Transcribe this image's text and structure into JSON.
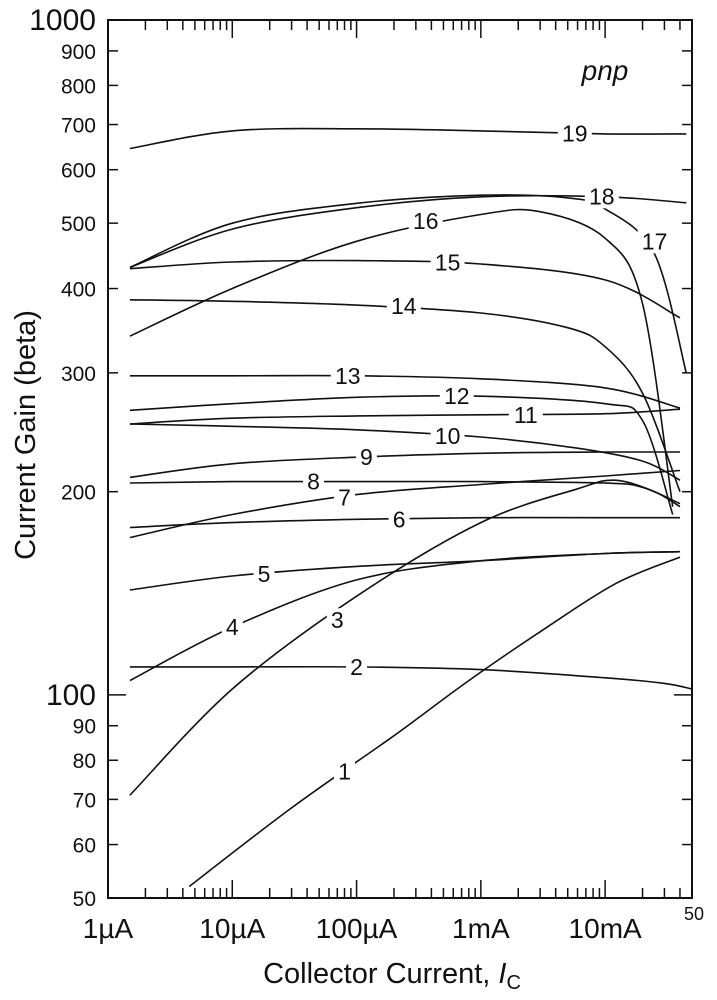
{
  "chart_data": {
    "type": "line",
    "title": "",
    "panel_label": "pnp",
    "xlabel": "Collector Current, ",
    "xlabel_var": "I",
    "xlabel_sub": "C",
    "ylabel": "Current Gain (beta)",
    "x_scale": "log",
    "y_scale": "log",
    "xlim": [
      1e-06,
      0.05
    ],
    "ylim": [
      50,
      1000
    ],
    "grid": false,
    "legend": "none",
    "x_ticks": [
      {
        "value": 1e-06,
        "label": "1µA"
      },
      {
        "value": 1e-05,
        "label": "10µA"
      },
      {
        "value": 0.0001,
        "label": "100µA"
      },
      {
        "value": 0.001,
        "label": "1mA"
      },
      {
        "value": 0.01,
        "label": "10mA"
      },
      {
        "value": 0.05,
        "label": "50"
      }
    ],
    "y_ticks": [
      {
        "value": 50,
        "label": "50"
      },
      {
        "value": 60,
        "label": "60"
      },
      {
        "value": 70,
        "label": "70"
      },
      {
        "value": 80,
        "label": "80"
      },
      {
        "value": 90,
        "label": "90"
      },
      {
        "value": 100,
        "label": "100"
      },
      {
        "value": 200,
        "label": "200"
      },
      {
        "value": 300,
        "label": "300"
      },
      {
        "value": 400,
        "label": "400"
      },
      {
        "value": 500,
        "label": "500"
      },
      {
        "value": 600,
        "label": "600"
      },
      {
        "value": 700,
        "label": "700"
      },
      {
        "value": 800,
        "label": "800"
      },
      {
        "value": 900,
        "label": "900"
      },
      {
        "value": 1000,
        "label": "1000"
      }
    ],
    "series": [
      {
        "name": "1",
        "points": [
          [
            4.5e-06,
            52
          ],
          [
            3e-05,
            68
          ],
          [
            0.0002,
            87
          ],
          [
            0.0008,
            105
          ],
          [
            0.003,
            124
          ],
          [
            0.012,
            146
          ],
          [
            0.04,
            160
          ]
        ],
        "label_at": [
          8e-05,
          77
        ]
      },
      {
        "name": "2",
        "points": [
          [
            1.5e-06,
            110
          ],
          [
            1e-05,
            110
          ],
          [
            0.0001,
            110
          ],
          [
            0.001,
            109
          ],
          [
            0.01,
            106
          ],
          [
            0.03,
            104
          ],
          [
            0.05,
            102
          ]
        ],
        "label_at": [
          0.0001,
          110
        ]
      },
      {
        "name": "3",
        "points": [
          [
            1.5e-06,
            71
          ],
          [
            1e-05,
            102
          ],
          [
            0.0001,
            140
          ],
          [
            0.001,
            180
          ],
          [
            0.006,
            202
          ],
          [
            0.012,
            208
          ],
          [
            0.025,
            200
          ],
          [
            0.04,
            190
          ]
        ],
        "label_at": [
          7e-05,
          129
        ]
      },
      {
        "name": "4",
        "points": [
          [
            1.5e-06,
            105
          ],
          [
            1e-05,
            126
          ],
          [
            0.0001,
            148
          ],
          [
            0.001,
            158
          ],
          [
            0.01,
            162
          ],
          [
            0.04,
            163
          ]
        ],
        "label_at": [
          1e-05,
          126
        ]
      },
      {
        "name": "5",
        "points": [
          [
            1.5e-06,
            143
          ],
          [
            1e-05,
            150
          ],
          [
            0.0001,
            155
          ],
          [
            0.001,
            158
          ],
          [
            0.01,
            162
          ],
          [
            0.04,
            163
          ]
        ],
        "label_at": [
          1.8e-05,
          151
        ]
      },
      {
        "name": "6",
        "points": [
          [
            1.5e-06,
            177
          ],
          [
            1e-05,
            180
          ],
          [
            0.0001,
            182
          ],
          [
            0.001,
            183
          ],
          [
            0.01,
            183
          ],
          [
            0.04,
            183
          ]
        ],
        "label_at": [
          0.00022,
          182
        ]
      },
      {
        "name": "7",
        "points": [
          [
            1.5e-06,
            171
          ],
          [
            1e-05,
            185
          ],
          [
            0.0001,
            198
          ],
          [
            0.001,
            205
          ],
          [
            0.01,
            211
          ],
          [
            0.04,
            215
          ]
        ],
        "label_at": [
          8e-05,
          196
        ]
      },
      {
        "name": "8",
        "points": [
          [
            1.5e-06,
            206
          ],
          [
            1e-05,
            207
          ],
          [
            0.0001,
            207
          ],
          [
            0.001,
            207
          ],
          [
            0.01,
            206
          ],
          [
            0.02,
            203
          ],
          [
            0.04,
            192
          ]
        ],
        "label_at": [
          4.5e-05,
          207
        ]
      },
      {
        "name": "9",
        "points": [
          [
            1.5e-06,
            210
          ],
          [
            1e-05,
            220
          ],
          [
            0.0001,
            225
          ],
          [
            0.001,
            228
          ],
          [
            0.01,
            229
          ],
          [
            0.04,
            229
          ]
        ],
        "label_at": [
          0.00012,
          225
        ]
      },
      {
        "name": "10",
        "points": [
          [
            1.5e-06,
            252
          ],
          [
            1e-05,
            250
          ],
          [
            0.0001,
            247
          ],
          [
            0.001,
            241
          ],
          [
            0.006,
            232
          ],
          [
            0.02,
            222
          ],
          [
            0.04,
            208
          ]
        ],
        "label_at": [
          0.00054,
          242
        ]
      },
      {
        "name": "11",
        "points": [
          [
            1.5e-06,
            252
          ],
          [
            1e-05,
            257
          ],
          [
            0.0001,
            259
          ],
          [
            0.001,
            260
          ],
          [
            0.01,
            261
          ],
          [
            0.04,
            265
          ]
        ],
        "label_at": [
          0.0023,
          260
        ]
      },
      {
        "name": "12",
        "points": [
          [
            1.5e-06,
            264
          ],
          [
            1e-05,
            270
          ],
          [
            0.0001,
            276
          ],
          [
            0.001,
            277
          ],
          [
            0.01,
            270
          ],
          [
            0.02,
            255
          ],
          [
            0.035,
            185
          ]
        ],
        "label_at": [
          0.00064,
          277
        ]
      },
      {
        "name": "13",
        "points": [
          [
            1.5e-06,
            297
          ],
          [
            1e-05,
            297
          ],
          [
            0.0001,
            297
          ],
          [
            0.001,
            294
          ],
          [
            0.01,
            285
          ],
          [
            0.04,
            266
          ]
        ],
        "label_at": [
          8.5e-05,
          297
        ]
      },
      {
        "name": "14",
        "points": [
          [
            1.5e-06,
            385
          ],
          [
            1e-05,
            383
          ],
          [
            0.0001,
            378
          ],
          [
            0.001,
            368
          ],
          [
            0.005,
            350
          ],
          [
            0.01,
            328
          ],
          [
            0.02,
            280
          ],
          [
            0.04,
            200
          ]
        ],
        "label_at": [
          0.00024,
          377
        ]
      },
      {
        "name": "15",
        "points": [
          [
            1.5e-06,
            428
          ],
          [
            1e-05,
            438
          ],
          [
            0.0001,
            440
          ],
          [
            0.001,
            435
          ],
          [
            0.01,
            412
          ],
          [
            0.04,
            362
          ]
        ],
        "label_at": [
          0.00054,
          437
        ]
      },
      {
        "name": "16",
        "points": [
          [
            1.5e-06,
            340
          ],
          [
            1e-05,
            400
          ],
          [
            0.0001,
            470
          ],
          [
            0.001,
            515
          ],
          [
            0.003,
            520
          ],
          [
            0.01,
            475
          ],
          [
            0.02,
            380
          ],
          [
            0.035,
            190
          ]
        ],
        "label_at": [
          0.00036,
          504
        ]
      },
      {
        "name": "17",
        "points": [
          [
            1.5e-06,
            430
          ],
          [
            1e-05,
            500
          ],
          [
            0.0001,
            535
          ],
          [
            0.001,
            550
          ],
          [
            0.005,
            545
          ],
          [
            0.01,
            525
          ],
          [
            0.025,
            450
          ],
          [
            0.045,
            300
          ]
        ],
        "label_at": [
          0.025,
          470
        ]
      },
      {
        "name": "18",
        "points": [
          [
            1.5e-06,
            430
          ],
          [
            1e-05,
            490
          ],
          [
            0.0001,
            527
          ],
          [
            0.001,
            547
          ],
          [
            0.01,
            547
          ],
          [
            0.045,
            536
          ]
        ],
        "label_at": [
          0.0094,
          548
        ]
      },
      {
        "name": "19",
        "points": [
          [
            1.5e-06,
            645
          ],
          [
            1e-05,
            685
          ],
          [
            0.0001,
            690
          ],
          [
            0.001,
            685
          ],
          [
            0.01,
            678
          ],
          [
            0.045,
            678
          ]
        ],
        "label_at": [
          0.0057,
          679
        ]
      }
    ]
  }
}
